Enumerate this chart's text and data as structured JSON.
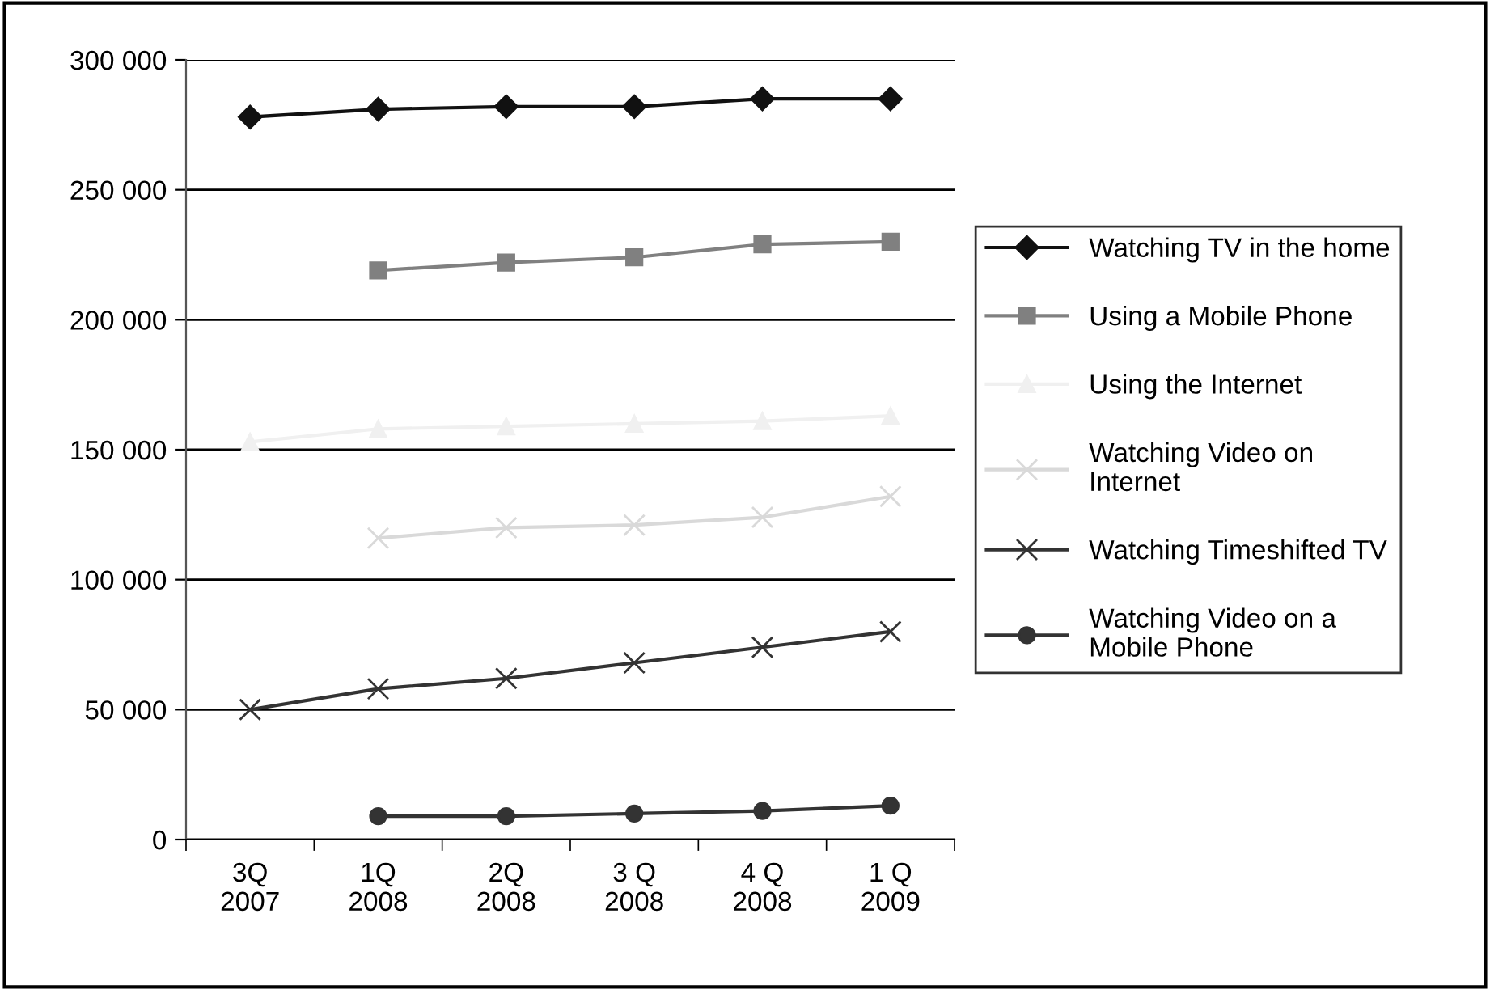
{
  "chart_data": {
    "type": "line",
    "categories": [
      "3Q\n2007",
      "1Q\n2008",
      "2Q\n2008",
      "3 Q\n2008",
      "4 Q\n2008",
      "1 Q\n2009"
    ],
    "series": [
      {
        "name": "Watching TV in the home",
        "color": "#111111",
        "marker": "diamond",
        "values": [
          278000,
          281000,
          282000,
          282000,
          285000,
          285000
        ]
      },
      {
        "name": "Using a Mobile Phone",
        "color": "#808080",
        "marker": "square",
        "values": [
          null,
          219000,
          222000,
          224000,
          229000,
          230000
        ]
      },
      {
        "name": "Using the Internet",
        "color": "#f0f0f0",
        "marker": "triangle",
        "values": [
          153000,
          158000,
          159000,
          160000,
          161000,
          163000
        ]
      },
      {
        "name": "Watching Video on\nInternet",
        "color": "#d9d9d9",
        "marker": "cross",
        "values": [
          null,
          116000,
          120000,
          121000,
          124000,
          132000
        ]
      },
      {
        "name": "Watching Timeshifted TV",
        "color": "#333333",
        "marker": "cross",
        "values": [
          50000,
          58000,
          62000,
          68000,
          74000,
          80000
        ]
      },
      {
        "name": "Watching Video on a\nMobile Phone",
        "color": "#333333",
        "marker": "circle",
        "values": [
          null,
          9000,
          9000,
          10000,
          11000,
          13000
        ]
      }
    ],
    "ylim": [
      0,
      300000
    ],
    "yticks": [
      {
        "value": 0,
        "label": "0"
      },
      {
        "value": 50000,
        "label": "50 000"
      },
      {
        "value": 100000,
        "label": "100 000"
      },
      {
        "value": 150000,
        "label": "150 000"
      },
      {
        "value": 200000,
        "label": "200 000"
      },
      {
        "value": 250000,
        "label": "250 000"
      },
      {
        "value": 300000,
        "label": "300 000"
      }
    ],
    "grid": "y",
    "legend": "right",
    "line_style": "solid"
  }
}
